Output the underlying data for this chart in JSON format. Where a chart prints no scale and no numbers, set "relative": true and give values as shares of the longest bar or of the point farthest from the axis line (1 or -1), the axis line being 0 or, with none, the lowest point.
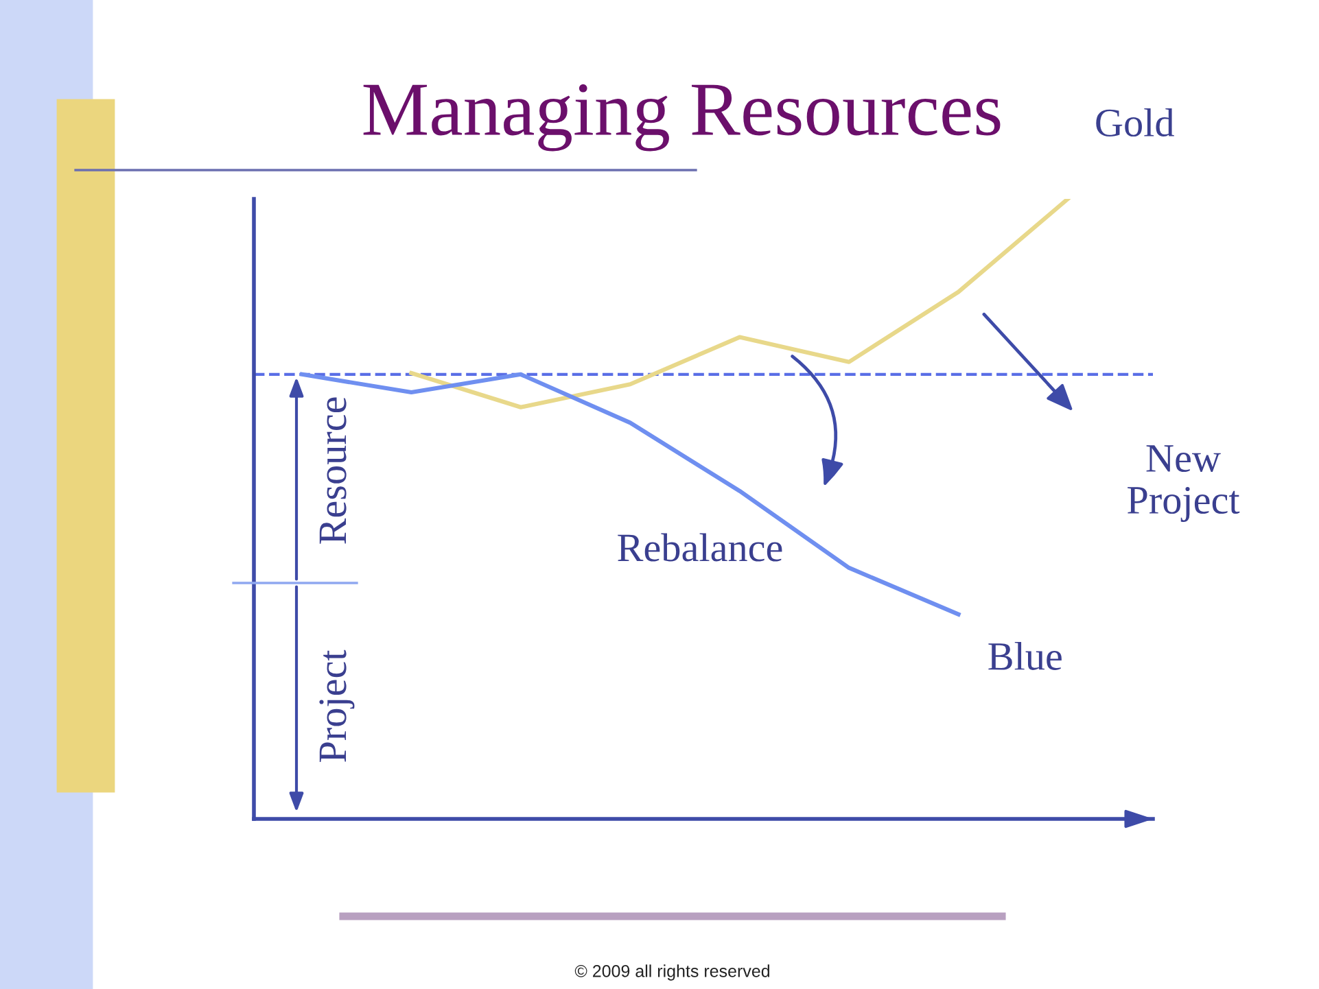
{
  "chart_data": {
    "type": "line",
    "title": "Managing Resources",
    "relative": true,
    "grid": false,
    "legend": false,
    "marker": "none",
    "line_style": "solid",
    "categories": [
      null,
      null,
      null,
      null,
      null,
      null,
      null,
      null
    ],
    "series": [
      {
        "name": "Gold",
        "color": "#e8d88a",
        "values": [
          null,
          0.719,
          0.664,
          0.701,
          0.777,
          0.737,
          0.85,
          1.0
        ]
      },
      {
        "name": "Blue",
        "color": "#6f8ff0",
        "values": [
          0.717,
          0.688,
          0.717,
          0.639,
          0.529,
          0.405,
          0.33,
          null
        ]
      }
    ],
    "ref_lines": [
      {
        "axis": "y",
        "value": 0.717,
        "color": "#5a6ee6",
        "line_style": "dashed"
      }
    ],
    "annotations": [
      "Resource",
      "Project",
      "Rebalance",
      "New Project",
      "© 2009 all rights reserved"
    ]
  }
}
